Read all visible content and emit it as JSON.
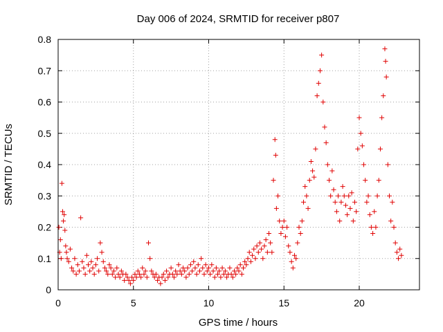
{
  "chart_data": {
    "type": "scatter",
    "title": "Day 006 of 2024, SRMTID for receiver p807",
    "xlabel": "GPS time / hours",
    "ylabel": "SRMTID / TECUs",
    "xlim": [
      0,
      24
    ],
    "ylim": [
      0,
      0.8
    ],
    "xticks": [
      0,
      5,
      10,
      15,
      20
    ],
    "xtick_labels": [
      "0",
      "5",
      "10",
      "15",
      "20"
    ],
    "yticks": [
      0,
      0.1,
      0.2,
      0.3,
      0.4,
      0.5,
      0.6,
      0.7,
      0.8
    ],
    "ytick_labels": [
      "0",
      "0.1",
      "0.2",
      "0.3",
      "0.4",
      "0.5",
      "0.6",
      "0.7",
      "0.8"
    ],
    "grid": true,
    "marker": "+",
    "color": "#e00000",
    "series": [
      {
        "name": "SRMTID",
        "points": [
          [
            0.05,
            0.2
          ],
          [
            0.1,
            0.12
          ],
          [
            0.15,
            0.16
          ],
          [
            0.2,
            0.1
          ],
          [
            0.25,
            0.34
          ],
          [
            0.3,
            0.25
          ],
          [
            0.35,
            0.22
          ],
          [
            0.4,
            0.24
          ],
          [
            0.45,
            0.19
          ],
          [
            0.5,
            0.14
          ],
          [
            0.55,
            0.12
          ],
          [
            0.6,
            0.1
          ],
          [
            0.7,
            0.09
          ],
          [
            0.8,
            0.13
          ],
          [
            0.9,
            0.07
          ],
          [
            1.0,
            0.06
          ],
          [
            1.1,
            0.1
          ],
          [
            1.2,
            0.05
          ],
          [
            1.3,
            0.08
          ],
          [
            1.4,
            0.06
          ],
          [
            1.5,
            0.23
          ],
          [
            1.6,
            0.09
          ],
          [
            1.7,
            0.07
          ],
          [
            1.8,
            0.05
          ],
          [
            1.9,
            0.11
          ],
          [
            2.0,
            0.08
          ],
          [
            2.1,
            0.06
          ],
          [
            2.2,
            0.09
          ],
          [
            2.3,
            0.07
          ],
          [
            2.4,
            0.05
          ],
          [
            2.5,
            0.08
          ],
          [
            2.6,
            0.1
          ],
          [
            2.7,
            0.06
          ],
          [
            2.8,
            0.15
          ],
          [
            2.9,
            0.12
          ],
          [
            3.0,
            0.09
          ],
          [
            3.1,
            0.07
          ],
          [
            3.2,
            0.06
          ],
          [
            3.3,
            0.05
          ],
          [
            3.4,
            0.08
          ],
          [
            3.5,
            0.07
          ],
          [
            3.6,
            0.05
          ],
          [
            3.7,
            0.06
          ],
          [
            3.8,
            0.04
          ],
          [
            3.9,
            0.07
          ],
          [
            4.0,
            0.05
          ],
          [
            4.1,
            0.04
          ],
          [
            4.2,
            0.06
          ],
          [
            4.3,
            0.05
          ],
          [
            4.4,
            0.03
          ],
          [
            4.5,
            0.05
          ],
          [
            4.6,
            0.04
          ],
          [
            4.7,
            0.03
          ],
          [
            4.8,
            0.02
          ],
          [
            4.9,
            0.04
          ],
          [
            5.0,
            0.03
          ],
          [
            5.1,
            0.05
          ],
          [
            5.2,
            0.04
          ],
          [
            5.3,
            0.06
          ],
          [
            5.4,
            0.05
          ],
          [
            5.5,
            0.04
          ],
          [
            5.6,
            0.07
          ],
          [
            5.7,
            0.05
          ],
          [
            5.8,
            0.06
          ],
          [
            5.9,
            0.04
          ],
          [
            6.0,
            0.15
          ],
          [
            6.1,
            0.1
          ],
          [
            6.2,
            0.06
          ],
          [
            6.3,
            0.05
          ],
          [
            6.4,
            0.04
          ],
          [
            6.5,
            0.05
          ],
          [
            6.6,
            0.03
          ],
          [
            6.7,
            0.04
          ],
          [
            6.8,
            0.02
          ],
          [
            6.9,
            0.04
          ],
          [
            7.0,
            0.05
          ],
          [
            7.1,
            0.03
          ],
          [
            7.2,
            0.06
          ],
          [
            7.3,
            0.04
          ],
          [
            7.4,
            0.05
          ],
          [
            7.5,
            0.07
          ],
          [
            7.6,
            0.05
          ],
          [
            7.7,
            0.04
          ],
          [
            7.8,
            0.06
          ],
          [
            7.9,
            0.05
          ],
          [
            8.0,
            0.08
          ],
          [
            8.1,
            0.06
          ],
          [
            8.2,
            0.05
          ],
          [
            8.3,
            0.07
          ],
          [
            8.4,
            0.06
          ],
          [
            8.5,
            0.04
          ],
          [
            8.6,
            0.07
          ],
          [
            8.7,
            0.05
          ],
          [
            8.8,
            0.08
          ],
          [
            8.9,
            0.06
          ],
          [
            9.0,
            0.09
          ],
          [
            9.1,
            0.07
          ],
          [
            9.2,
            0.05
          ],
          [
            9.3,
            0.08
          ],
          [
            9.4,
            0.06
          ],
          [
            9.5,
            0.1
          ],
          [
            9.6,
            0.07
          ],
          [
            9.7,
            0.05
          ],
          [
            9.8,
            0.08
          ],
          [
            9.9,
            0.06
          ],
          [
            10.0,
            0.07
          ],
          [
            10.1,
            0.05
          ],
          [
            10.2,
            0.08
          ],
          [
            10.3,
            0.06
          ],
          [
            10.4,
            0.04
          ],
          [
            10.5,
            0.07
          ],
          [
            10.6,
            0.05
          ],
          [
            10.7,
            0.06
          ],
          [
            10.8,
            0.04
          ],
          [
            10.9,
            0.07
          ],
          [
            11.0,
            0.05
          ],
          [
            11.1,
            0.06
          ],
          [
            11.2,
            0.04
          ],
          [
            11.3,
            0.05
          ],
          [
            11.4,
            0.07
          ],
          [
            11.5,
            0.05
          ],
          [
            11.6,
            0.04
          ],
          [
            11.7,
            0.06
          ],
          [
            11.8,
            0.05
          ],
          [
            11.9,
            0.07
          ],
          [
            12.0,
            0.06
          ],
          [
            12.1,
            0.08
          ],
          [
            12.2,
            0.05
          ],
          [
            12.3,
            0.07
          ],
          [
            12.4,
            0.09
          ],
          [
            12.5,
            0.08
          ],
          [
            12.6,
            0.1
          ],
          [
            12.7,
            0.12
          ],
          [
            12.8,
            0.09
          ],
          [
            12.9,
            0.11
          ],
          [
            13.0,
            0.13
          ],
          [
            13.1,
            0.1
          ],
          [
            13.2,
            0.14
          ],
          [
            13.3,
            0.12
          ],
          [
            13.4,
            0.15
          ],
          [
            13.5,
            0.13
          ],
          [
            13.6,
            0.1
          ],
          [
            13.7,
            0.14
          ],
          [
            13.8,
            0.16
          ],
          [
            13.9,
            0.12
          ],
          [
            14.0,
            0.18
          ],
          [
            14.1,
            0.15
          ],
          [
            14.2,
            0.12
          ],
          [
            14.3,
            0.35
          ],
          [
            14.4,
            0.48
          ],
          [
            14.45,
            0.43
          ],
          [
            14.5,
            0.26
          ],
          [
            14.6,
            0.3
          ],
          [
            14.7,
            0.22
          ],
          [
            14.8,
            0.18
          ],
          [
            14.9,
            0.2
          ],
          [
            15.0,
            0.22
          ],
          [
            15.1,
            0.17
          ],
          [
            15.2,
            0.2
          ],
          [
            15.3,
            0.14
          ],
          [
            15.4,
            0.12
          ],
          [
            15.5,
            0.09
          ],
          [
            15.6,
            0.07
          ],
          [
            15.7,
            0.11
          ],
          [
            15.8,
            0.1
          ],
          [
            15.9,
            0.15
          ],
          [
            16.0,
            0.2
          ],
          [
            16.1,
            0.18
          ],
          [
            16.2,
            0.22
          ],
          [
            16.3,
            0.28
          ],
          [
            16.4,
            0.33
          ],
          [
            16.5,
            0.3
          ],
          [
            16.6,
            0.26
          ],
          [
            16.7,
            0.35
          ],
          [
            16.8,
            0.41
          ],
          [
            16.9,
            0.38
          ],
          [
            17.0,
            0.36
          ],
          [
            17.1,
            0.45
          ],
          [
            17.2,
            0.62
          ],
          [
            17.3,
            0.66
          ],
          [
            17.4,
            0.7
          ],
          [
            17.5,
            0.75
          ],
          [
            17.6,
            0.6
          ],
          [
            17.7,
            0.52
          ],
          [
            17.8,
            0.47
          ],
          [
            17.9,
            0.4
          ],
          [
            18.0,
            0.35
          ],
          [
            18.1,
            0.3
          ],
          [
            18.2,
            0.38
          ],
          [
            18.3,
            0.32
          ],
          [
            18.4,
            0.28
          ],
          [
            18.5,
            0.25
          ],
          [
            18.6,
            0.3
          ],
          [
            18.7,
            0.22
          ],
          [
            18.8,
            0.28
          ],
          [
            18.9,
            0.33
          ],
          [
            19.0,
            0.3
          ],
          [
            19.1,
            0.27
          ],
          [
            19.2,
            0.24
          ],
          [
            19.3,
            0.3
          ],
          [
            19.4,
            0.26
          ],
          [
            19.5,
            0.31
          ],
          [
            19.6,
            0.22
          ],
          [
            19.7,
            0.28
          ],
          [
            19.8,
            0.25
          ],
          [
            19.9,
            0.45
          ],
          [
            20.0,
            0.55
          ],
          [
            20.1,
            0.5
          ],
          [
            20.2,
            0.46
          ],
          [
            20.3,
            0.4
          ],
          [
            20.4,
            0.35
          ],
          [
            20.5,
            0.28
          ],
          [
            20.6,
            0.3
          ],
          [
            20.7,
            0.24
          ],
          [
            20.8,
            0.2
          ],
          [
            20.9,
            0.18
          ],
          [
            21.0,
            0.25
          ],
          [
            21.1,
            0.2
          ],
          [
            21.2,
            0.3
          ],
          [
            21.3,
            0.35
          ],
          [
            21.4,
            0.45
          ],
          [
            21.5,
            0.55
          ],
          [
            21.6,
            0.62
          ],
          [
            21.7,
            0.77
          ],
          [
            21.75,
            0.73
          ],
          [
            21.8,
            0.68
          ],
          [
            21.9,
            0.4
          ],
          [
            22.0,
            0.3
          ],
          [
            22.1,
            0.22
          ],
          [
            22.2,
            0.28
          ],
          [
            22.3,
            0.2
          ],
          [
            22.4,
            0.15
          ],
          [
            22.5,
            0.12
          ],
          [
            22.6,
            0.1
          ],
          [
            22.7,
            0.13
          ],
          [
            22.8,
            0.11
          ]
        ]
      }
    ]
  }
}
